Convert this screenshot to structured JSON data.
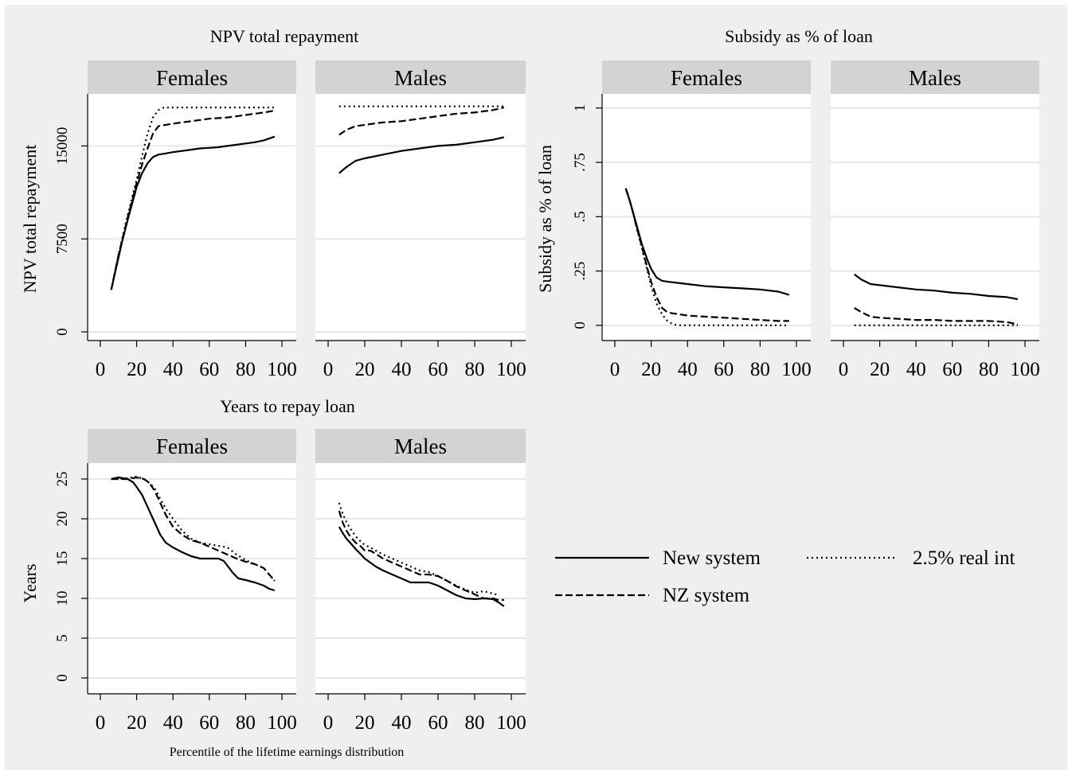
{
  "figure": {
    "xlabel": "Percentile of the lifetime earnings distribution"
  },
  "legend": {
    "items": [
      {
        "label": "New system",
        "style": "solid"
      },
      {
        "label": "2.5% real int",
        "style": "dotted"
      },
      {
        "label": "NZ system",
        "style": "dashed"
      }
    ]
  },
  "chart_data": [
    {
      "type": "line",
      "title": "NPV total repayment",
      "ylabel": "NPV total repayment",
      "xlim": [
        0,
        100
      ],
      "ylim": [
        -700,
        19200
      ],
      "xticks": [
        0,
        20,
        40,
        60,
        80,
        100
      ],
      "yticks": [
        0,
        7500,
        15000
      ],
      "ytick_labels": [
        "0",
        "7500",
        "15000"
      ],
      "grid": true,
      "panels": [
        {
          "name": "Females",
          "series": [
            {
              "name": "New system",
              "style": "solid",
              "x": [
                6,
                8,
                10,
                12,
                15,
                18,
                20,
                23,
                26,
                29,
                32,
                36,
                40,
                45,
                50,
                55,
                60,
                65,
                70,
                75,
                80,
                85,
                90,
                93,
                96
              ],
              "y": [
                3400,
                4700,
                6000,
                7300,
                9000,
                10600,
                11700,
                12800,
                13600,
                14100,
                14300,
                14400,
                14500,
                14600,
                14700,
                14800,
                14850,
                14900,
                15000,
                15100,
                15200,
                15300,
                15450,
                15600,
                15750
              ]
            },
            {
              "name": "NZ system",
              "style": "dashed",
              "x": [
                6,
                10,
                15,
                20,
                23,
                26,
                29,
                32,
                36,
                40,
                50,
                60,
                70,
                80,
                90,
                96
              ],
              "y": [
                3400,
                6200,
                9200,
                12000,
                13500,
                14800,
                16000,
                16600,
                16700,
                16800,
                17000,
                17200,
                17300,
                17500,
                17700,
                17850
              ]
            },
            {
              "name": "2.5% real int",
              "style": "dotted",
              "x": [
                6,
                10,
                15,
                20,
                23,
                26,
                29,
                32,
                35,
                40,
                50,
                60,
                70,
                80,
                90,
                96
              ],
              "y": [
                3400,
                6200,
                9400,
                12300,
                14200,
                16000,
                17300,
                17900,
                18100,
                18100,
                18100,
                18100,
                18100,
                18100,
                18100,
                18100
              ]
            }
          ]
        },
        {
          "name": "Males",
          "series": [
            {
              "name": "New system",
              "style": "solid",
              "x": [
                6,
                10,
                15,
                20,
                30,
                40,
                50,
                60,
                70,
                80,
                90,
                96
              ],
              "y": [
                12800,
                13300,
                13800,
                14000,
                14300,
                14600,
                14800,
                15000,
                15100,
                15300,
                15500,
                15700
              ]
            },
            {
              "name": "NZ system",
              "style": "dashed",
              "x": [
                6,
                10,
                15,
                20,
                30,
                40,
                50,
                60,
                70,
                80,
                90,
                96
              ],
              "y": [
                15900,
                16300,
                16600,
                16700,
                16900,
                17000,
                17200,
                17400,
                17600,
                17700,
                17900,
                18100
              ]
            },
            {
              "name": "2.5% real int",
              "style": "dotted",
              "x": [
                6,
                20,
                40,
                60,
                80,
                96
              ],
              "y": [
                18200,
                18200,
                18200,
                18200,
                18200,
                18200
              ]
            }
          ]
        }
      ]
    },
    {
      "type": "line",
      "title": "Subsidy as % of loan",
      "ylabel": "Subsidy as % of loan",
      "xlim": [
        0,
        100
      ],
      "ylim": [
        -0.07,
        1.065
      ],
      "xticks": [
        0,
        20,
        40,
        60,
        80,
        100
      ],
      "yticks": [
        0,
        0.25,
        0.5,
        0.75,
        1
      ],
      "ytick_labels": [
        "0",
        ".25",
        ".5",
        ".75",
        "1"
      ],
      "grid": true,
      "panels": [
        {
          "name": "Females",
          "series": [
            {
              "name": "New system",
              "style": "solid",
              "x": [
                6,
                8,
                10,
                12,
                15,
                18,
                20,
                23,
                26,
                30,
                35,
                40,
                50,
                60,
                70,
                80,
                90,
                96
              ],
              "y": [
                0.63,
                0.58,
                0.52,
                0.46,
                0.37,
                0.3,
                0.26,
                0.22,
                0.205,
                0.2,
                0.195,
                0.19,
                0.18,
                0.175,
                0.17,
                0.165,
                0.155,
                0.14
              ]
            },
            {
              "name": "NZ system",
              "style": "dashed",
              "x": [
                6,
                8,
                10,
                12,
                15,
                18,
                20,
                23,
                26,
                29,
                32,
                36,
                40,
                50,
                60,
                70,
                80,
                90,
                96
              ],
              "y": [
                0.63,
                0.58,
                0.52,
                0.45,
                0.36,
                0.26,
                0.2,
                0.13,
                0.08,
                0.06,
                0.055,
                0.05,
                0.045,
                0.04,
                0.035,
                0.03,
                0.025,
                0.02,
                0.02
              ]
            },
            {
              "name": "2.5% real int",
              "style": "dotted",
              "x": [
                6,
                8,
                10,
                12,
                15,
                18,
                20,
                23,
                26,
                29,
                32,
                35,
                40,
                60,
                80,
                96
              ],
              "y": [
                0.63,
                0.58,
                0.52,
                0.45,
                0.35,
                0.25,
                0.18,
                0.1,
                0.05,
                0.02,
                0.005,
                0,
                0,
                0,
                0,
                0
              ]
            }
          ]
        },
        {
          "name": "Males",
          "series": [
            {
              "name": "New system",
              "style": "solid",
              "x": [
                6,
                10,
                15,
                20,
                30,
                40,
                50,
                60,
                70,
                80,
                90,
                96
              ],
              "y": [
                0.235,
                0.21,
                0.19,
                0.185,
                0.175,
                0.165,
                0.16,
                0.15,
                0.145,
                0.135,
                0.13,
                0.12
              ]
            },
            {
              "name": "NZ system",
              "style": "dashed",
              "x": [
                6,
                10,
                15,
                20,
                30,
                40,
                50,
                60,
                70,
                80,
                90,
                96
              ],
              "y": [
                0.08,
                0.06,
                0.04,
                0.035,
                0.03,
                0.025,
                0.025,
                0.02,
                0.02,
                0.02,
                0.015,
                0.005
              ]
            },
            {
              "name": "2.5% real int",
              "style": "dotted",
              "x": [
                6,
                20,
                40,
                60,
                80,
                96
              ],
              "y": [
                0,
                0,
                0,
                0,
                0,
                0
              ]
            }
          ]
        }
      ]
    },
    {
      "type": "line",
      "title": "Years to repay loan",
      "ylabel": "Years",
      "xlim": [
        0,
        100
      ],
      "ylim": [
        -2,
        27
      ],
      "xticks": [
        0,
        20,
        40,
        60,
        80,
        100
      ],
      "yticks": [
        0,
        5,
        10,
        15,
        20,
        25
      ],
      "ytick_labels": [
        "0",
        "5",
        "10",
        "15",
        "20",
        "25"
      ],
      "grid": true,
      "panels": [
        {
          "name": "Females",
          "series": [
            {
              "name": "New system",
              "style": "solid",
              "x": [
                6,
                10,
                15,
                18,
                20,
                23,
                26,
                30,
                33,
                36,
                40,
                45,
                50,
                55,
                60,
                65,
                68,
                70,
                73,
                76,
                80,
                85,
                90,
                93,
                96
              ],
              "y": [
                25,
                25.2,
                25,
                24.6,
                24,
                23,
                21.5,
                19.5,
                18,
                17,
                16.4,
                15.8,
                15.3,
                15,
                15,
                15,
                14.7,
                14.1,
                13.2,
                12.5,
                12.3,
                12,
                11.6,
                11.2,
                11
              ]
            },
            {
              "name": "NZ system",
              "style": "dashed",
              "x": [
                6,
                10,
                15,
                20,
                24,
                27,
                30,
                33,
                36,
                40,
                45,
                50,
                55,
                60,
                65,
                70,
                75,
                80,
                85,
                90,
                93,
                96
              ],
              "y": [
                25,
                25,
                25,
                25.2,
                25,
                24.5,
                23.5,
                22,
                20.5,
                19,
                18,
                17.3,
                17,
                16.5,
                16,
                15.5,
                15,
                14.6,
                14.3,
                13.8,
                13,
                12.2
              ]
            },
            {
              "name": "2.5% real int",
              "style": "dotted",
              "x": [
                6,
                10,
                15,
                20,
                24,
                27,
                30,
                33,
                36,
                40,
                45,
                50,
                55,
                60,
                65,
                70,
                75,
                80,
                85,
                90,
                93,
                96
              ],
              "y": [
                25,
                25,
                25.1,
                25.3,
                25,
                24.5,
                23.8,
                22.5,
                21.3,
                20,
                18.5,
                17.5,
                17,
                16.8,
                16.6,
                16.4,
                15.5,
                14.8,
                14.3,
                13.8,
                13,
                12.2
              ]
            }
          ]
        },
        {
          "name": "Males",
          "series": [
            {
              "name": "New system",
              "style": "solid",
              "x": [
                6,
                8,
                10,
                12,
                15,
                18,
                20,
                23,
                26,
                30,
                35,
                40,
                45,
                50,
                55,
                60,
                65,
                70,
                75,
                80,
                85,
                90,
                93,
                96
              ],
              "y": [
                19,
                18.2,
                17.5,
                17,
                16.2,
                15.5,
                15,
                14.5,
                14,
                13.5,
                13,
                12.5,
                12,
                12,
                12,
                11.6,
                11,
                10.4,
                10,
                9.9,
                10,
                9.9,
                9.5,
                9
              ]
            },
            {
              "name": "NZ system",
              "style": "dashed",
              "x": [
                6,
                8,
                10,
                12,
                15,
                18,
                20,
                23,
                26,
                30,
                35,
                40,
                45,
                50,
                55,
                60,
                65,
                70,
                75,
                80,
                85,
                90,
                93,
                96
              ],
              "y": [
                21,
                19.5,
                18.5,
                17.8,
                17,
                16.5,
                16,
                16,
                15.6,
                15,
                14.5,
                14,
                13.5,
                13,
                13,
                12.8,
                12.2,
                11.5,
                11,
                10.5,
                10,
                10,
                9.8,
                9.8
              ]
            },
            {
              "name": "2.5% real int",
              "style": "dotted",
              "x": [
                6,
                8,
                10,
                12,
                15,
                18,
                20,
                23,
                26,
                30,
                35,
                40,
                45,
                50,
                55,
                60,
                65,
                70,
                75,
                80,
                85,
                90,
                93
              ],
              "y": [
                22,
                20.6,
                19.6,
                18.8,
                17.8,
                17.1,
                16.7,
                16.4,
                16,
                15.5,
                15,
                14.5,
                14,
                13.5,
                13.3,
                12.8,
                12.2,
                11.6,
                11.1,
                10.7,
                10.9,
                10.6,
                10.4
              ]
            }
          ]
        }
      ]
    }
  ]
}
